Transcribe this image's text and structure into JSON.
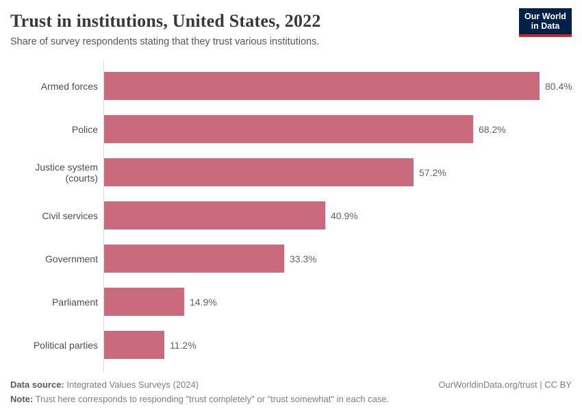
{
  "header": {
    "logo": {
      "line1": "Our World",
      "line2": "in Data"
    }
  },
  "chart_data": {
    "type": "bar",
    "orientation": "horizontal",
    "title": "Trust in institutions, United States, 2022",
    "subtitle": "Share of survey respondents stating that they trust various institutions.",
    "categories": [
      "Armed forces",
      "Police",
      "Justice system (courts)",
      "Civil services",
      "Government",
      "Parliament",
      "Political parties"
    ],
    "values": [
      80.4,
      68.2,
      57.2,
      40.9,
      33.3,
      14.9,
      11.2
    ],
    "value_labels": [
      "80.4%",
      "68.2%",
      "57.2%",
      "40.9%",
      "33.3%",
      "14.9%",
      "11.2%"
    ],
    "unit": "%",
    "xlim": [
      0,
      88
    ],
    "grid": false,
    "legend": "none",
    "bar_color": "#ca6b7d",
    "axis_line_color": "#d9d9d9"
  },
  "footer": {
    "source_label": "Data source:",
    "source_value": "Integrated Values Surveys (2024)",
    "note_label": "Note:",
    "note_value": "Trust here corresponds to responding \"trust completely\" or \"trust somewhat\" in each case.",
    "attribution": "OurWorldinData.org/trust | CC BY"
  }
}
